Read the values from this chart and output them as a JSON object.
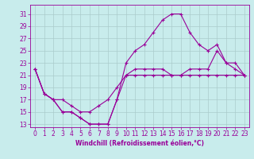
{
  "xlabel": "Windchill (Refroidissement éolien,°C)",
  "bg_color": "#c8ecec",
  "line_color": "#990099",
  "grid_color": "#aacccc",
  "xlim": [
    -0.5,
    23.5
  ],
  "ylim": [
    12.5,
    32.5
  ],
  "yticks": [
    13,
    15,
    17,
    19,
    21,
    23,
    25,
    27,
    29,
    31
  ],
  "xticks": [
    0,
    1,
    2,
    3,
    4,
    5,
    6,
    7,
    8,
    9,
    10,
    11,
    12,
    13,
    14,
    15,
    16,
    17,
    18,
    19,
    20,
    21,
    22,
    23
  ],
  "line1": [
    22,
    18,
    17,
    15,
    15,
    14,
    13,
    13,
    13,
    17,
    21,
    21,
    21,
    21,
    21,
    21,
    21,
    21,
    21,
    21,
    21,
    21,
    21,
    21
  ],
  "line2": [
    22,
    18,
    17,
    17,
    16,
    15,
    15,
    16,
    17,
    19,
    21,
    22,
    22,
    22,
    22,
    21,
    21,
    22,
    22,
    22,
    25,
    23,
    23,
    21
  ],
  "line3": [
    22,
    18,
    17,
    15,
    15,
    14,
    13,
    13,
    13,
    17,
    23,
    25,
    26,
    28,
    30,
    31,
    31,
    28,
    26,
    25,
    26,
    23,
    22,
    21
  ],
  "tick_fontsize": 5.5,
  "xlabel_fontsize": 5.5
}
